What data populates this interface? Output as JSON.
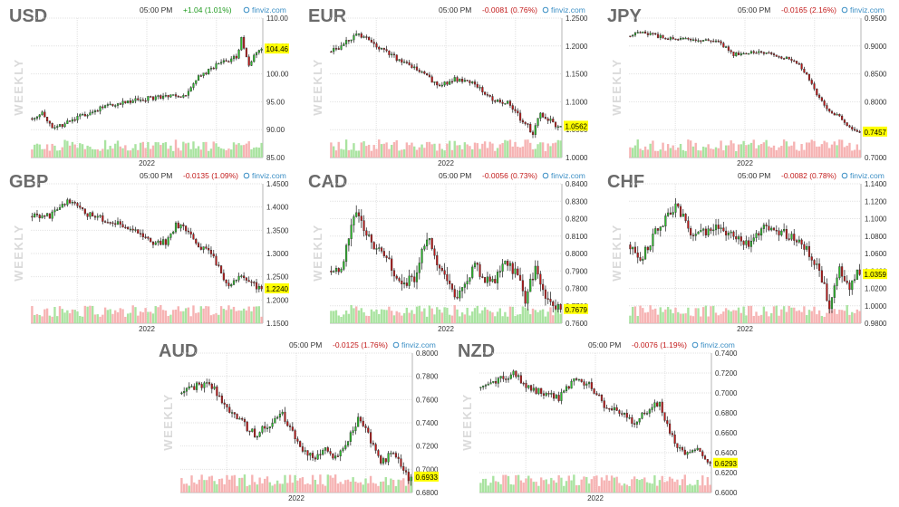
{
  "page": {
    "background": "#ffffff"
  },
  "colors": {
    "up_body": "#2bbd2b",
    "down_body": "#c01818",
    "wick": "#333333",
    "vol_up": "#a9e3a0",
    "vol_down": "#f6b3b3",
    "grid": "#e2e2e2",
    "last_price_bg": "#ffff00",
    "source": "#3a8ec4"
  },
  "chart_data": [
    {
      "type": "candlestick",
      "symbol": "USD",
      "side_label": "WEEKLY",
      "time": "05:00 PM",
      "change": "+1.04 (1.01%)",
      "direction": "up",
      "source": "finviz.com",
      "x_label": "2022",
      "y_ticks": [
        "110.00",
        "105.00",
        "100.00",
        "95.00",
        "90.00",
        "85.00"
      ],
      "ylim": [
        85,
        110
      ],
      "last_price": "104.46",
      "last_value": 104.46,
      "anchors": [
        [
          0,
          92.0
        ],
        [
          5,
          93.0
        ],
        [
          9,
          90.0
        ],
        [
          14,
          91.0
        ],
        [
          25,
          93.4
        ],
        [
          38,
          95.0
        ],
        [
          50,
          95.8
        ],
        [
          62,
          96.0
        ],
        [
          66,
          99.0
        ],
        [
          74,
          101.5
        ],
        [
          82,
          103.0
        ],
        [
          84,
          106.2
        ],
        [
          87,
          101.5
        ],
        [
          91,
          104.46
        ]
      ],
      "volatility": 0.5,
      "volume_max": 30,
      "volume_pattern": "mixed"
    },
    {
      "type": "candlestick",
      "symbol": "EUR",
      "side_label": "WEEKLY",
      "time": "05:00 PM",
      "change": "-0.0081 (0.76%)",
      "direction": "down",
      "source": "finviz.com",
      "x_label": "2022",
      "y_ticks": [
        "1.2500",
        "1.2000",
        "1.1500",
        "1.1000",
        "1.0500",
        "1.0000"
      ],
      "ylim": [
        1.0,
        1.25
      ],
      "last_price": "1.0562",
      "last_value": 1.0562,
      "anchors": [
        [
          0,
          1.19
        ],
        [
          5,
          1.2
        ],
        [
          12,
          1.222
        ],
        [
          17,
          1.21
        ],
        [
          22,
          1.19
        ],
        [
          34,
          1.16
        ],
        [
          44,
          1.13
        ],
        [
          52,
          1.142
        ],
        [
          58,
          1.13
        ],
        [
          64,
          1.105
        ],
        [
          71,
          1.1
        ],
        [
          76,
          1.07
        ],
        [
          81,
          1.045
        ],
        [
          84,
          1.078
        ],
        [
          88,
          1.065
        ],
        [
          91,
          1.0562
        ]
      ],
      "volatility": 0.006,
      "volume_max": 30,
      "volume_pattern": "mixed"
    },
    {
      "type": "candlestick",
      "symbol": "JPY",
      "side_label": "WEEKLY",
      "time": "05:00 PM",
      "change": "-0.0165 (2.16%)",
      "direction": "down",
      "source": "finviz.com",
      "x_label": "2022",
      "y_ticks": [
        "0.9500",
        "0.9000",
        "0.8500",
        "0.8000",
        "0.7500",
        "0.7000"
      ],
      "ylim": [
        0.7,
        0.95
      ],
      "last_price": "0.7457",
      "last_value": 0.7457,
      "anchors": [
        [
          0,
          0.918
        ],
        [
          6,
          0.925
        ],
        [
          14,
          0.915
        ],
        [
          25,
          0.912
        ],
        [
          35,
          0.91
        ],
        [
          42,
          0.885
        ],
        [
          52,
          0.89
        ],
        [
          60,
          0.88
        ],
        [
          66,
          0.876
        ],
        [
          71,
          0.85
        ],
        [
          75,
          0.815
        ],
        [
          79,
          0.785
        ],
        [
          84,
          0.775
        ],
        [
          88,
          0.755
        ],
        [
          91,
          0.7457
        ]
      ],
      "volatility": 0.004,
      "volume_max": 30,
      "volume_pattern": "mixed"
    },
    {
      "type": "candlestick",
      "symbol": "GBP",
      "side_label": "WEEKLY",
      "time": "05:00 PM",
      "change": "-0.0135 (1.09%)",
      "direction": "down",
      "source": "finviz.com",
      "x_label": "2022",
      "y_ticks": [
        "1.4500",
        "1.4000",
        "1.3500",
        "1.3000",
        "1.2500",
        "1.2000",
        "1.1500"
      ],
      "ylim": [
        1.15,
        1.45
      ],
      "last_price": "1.2240",
      "last_value": 1.224,
      "anchors": [
        [
          0,
          1.38
        ],
        [
          8,
          1.38
        ],
        [
          16,
          1.415
        ],
        [
          22,
          1.385
        ],
        [
          32,
          1.37
        ],
        [
          40,
          1.355
        ],
        [
          48,
          1.325
        ],
        [
          54,
          1.325
        ],
        [
          58,
          1.36
        ],
        [
          63,
          1.35
        ],
        [
          67,
          1.315
        ],
        [
          72,
          1.3
        ],
        [
          75,
          1.27
        ],
        [
          79,
          1.225
        ],
        [
          83,
          1.255
        ],
        [
          87,
          1.24
        ],
        [
          91,
          1.224
        ]
      ],
      "volatility": 0.008,
      "volume_max": 30,
      "volume_pattern": "mostly-down"
    },
    {
      "type": "candlestick",
      "symbol": "CAD",
      "side_label": "WEEKLY",
      "time": "05:00 PM",
      "change": "-0.0056 (0.73%)",
      "direction": "down",
      "source": "finviz.com",
      "x_label": "2022",
      "y_ticks": [
        "0.8400",
        "0.8300",
        "0.8200",
        "0.8100",
        "0.8000",
        "0.7900",
        "0.7800",
        "0.7700",
        "0.7600"
      ],
      "ylim": [
        0.76,
        0.84
      ],
      "last_price": "0.7679",
      "last_value": 0.7679,
      "anchors": [
        [
          0,
          0.79
        ],
        [
          5,
          0.79
        ],
        [
          11,
          0.825
        ],
        [
          16,
          0.808
        ],
        [
          22,
          0.8
        ],
        [
          28,
          0.783
        ],
        [
          34,
          0.785
        ],
        [
          39,
          0.81
        ],
        [
          44,
          0.79
        ],
        [
          50,
          0.775
        ],
        [
          54,
          0.78
        ],
        [
          58,
          0.793
        ],
        [
          62,
          0.786
        ],
        [
          66,
          0.785
        ],
        [
          70,
          0.795
        ],
        [
          74,
          0.79
        ],
        [
          78,
          0.773
        ],
        [
          82,
          0.793
        ],
        [
          86,
          0.775
        ],
        [
          91,
          0.7679
        ]
      ],
      "volatility": 0.004,
      "volume_max": 30,
      "volume_pattern": "mostly-up"
    },
    {
      "type": "candlestick",
      "symbol": "CHF",
      "side_label": "WEEKLY",
      "time": "05:00 PM",
      "change": "-0.0082 (0.78%)",
      "direction": "down",
      "source": "finviz.com",
      "x_label": "2022",
      "y_ticks": [
        "1.1400",
        "1.1200",
        "1.1000",
        "1.0800",
        "1.0600",
        "1.0400",
        "1.0200",
        "1.0000",
        "0.9800"
      ],
      "ylim": [
        0.98,
        1.14
      ],
      "last_price": "1.0359",
      "last_value": 1.0359,
      "anchors": [
        [
          0,
          1.07
        ],
        [
          5,
          1.05
        ],
        [
          10,
          1.08
        ],
        [
          15,
          1.1
        ],
        [
          20,
          1.115
        ],
        [
          24,
          1.085
        ],
        [
          30,
          1.085
        ],
        [
          36,
          1.09
        ],
        [
          42,
          1.08
        ],
        [
          48,
          1.07
        ],
        [
          54,
          1.09
        ],
        [
          60,
          1.085
        ],
        [
          66,
          1.08
        ],
        [
          72,
          1.06
        ],
        [
          76,
          1.04
        ],
        [
          80,
          1.0
        ],
        [
          84,
          1.04
        ],
        [
          88,
          1.02
        ],
        [
          91,
          1.0359
        ]
      ],
      "volatility": 0.007,
      "volume_max": 30,
      "volume_pattern": "mostly-down"
    },
    {
      "type": "candlestick",
      "symbol": "AUD",
      "side_label": "WEEKLY",
      "time": "05:00 PM",
      "change": "-0.0125 (1.76%)",
      "direction": "down",
      "source": "finviz.com",
      "x_label": "2022",
      "y_ticks": [
        "0.8000",
        "0.7800",
        "0.7600",
        "0.7400",
        "0.7200",
        "0.7000",
        "0.6800"
      ],
      "ylim": [
        0.68,
        0.8
      ],
      "last_price": "0.6933",
      "last_value": 0.6933,
      "anchors": [
        [
          0,
          0.765
        ],
        [
          5,
          0.77
        ],
        [
          12,
          0.775
        ],
        [
          18,
          0.755
        ],
        [
          24,
          0.742
        ],
        [
          30,
          0.73
        ],
        [
          36,
          0.738
        ],
        [
          40,
          0.75
        ],
        [
          44,
          0.735
        ],
        [
          48,
          0.718
        ],
        [
          54,
          0.708
        ],
        [
          58,
          0.72
        ],
        [
          62,
          0.71
        ],
        [
          66,
          0.718
        ],
        [
          71,
          0.745
        ],
        [
          75,
          0.73
        ],
        [
          80,
          0.705
        ],
        [
          85,
          0.715
        ],
        [
          91,
          0.6933
        ]
      ],
      "volatility": 0.004,
      "volume_max": 30,
      "volume_pattern": "mostly-down"
    },
    {
      "type": "candlestick",
      "symbol": "NZD",
      "side_label": "WEEKLY",
      "time": "05:00 PM",
      "change": "-0.0076 (1.19%)",
      "direction": "down",
      "source": "finviz.com",
      "x_label": "2022",
      "y_ticks": [
        "0.7400",
        "0.7200",
        "0.7000",
        "0.6800",
        "0.6600",
        "0.6400",
        "0.6200",
        "0.6000"
      ],
      "ylim": [
        0.6,
        0.74
      ],
      "last_price": "0.6293",
      "last_value": 0.6293,
      "anchors": [
        [
          0,
          0.705
        ],
        [
          6,
          0.71
        ],
        [
          14,
          0.72
        ],
        [
          20,
          0.705
        ],
        [
          26,
          0.7
        ],
        [
          32,
          0.695
        ],
        [
          38,
          0.712
        ],
        [
          44,
          0.71
        ],
        [
          50,
          0.688
        ],
        [
          56,
          0.68
        ],
        [
          62,
          0.67
        ],
        [
          68,
          0.685
        ],
        [
          72,
          0.69
        ],
        [
          76,
          0.66
        ],
        [
          81,
          0.64
        ],
        [
          86,
          0.645
        ],
        [
          91,
          0.6293
        ]
      ],
      "volatility": 0.004,
      "volume_max": 30,
      "volume_pattern": "mixed"
    }
  ]
}
